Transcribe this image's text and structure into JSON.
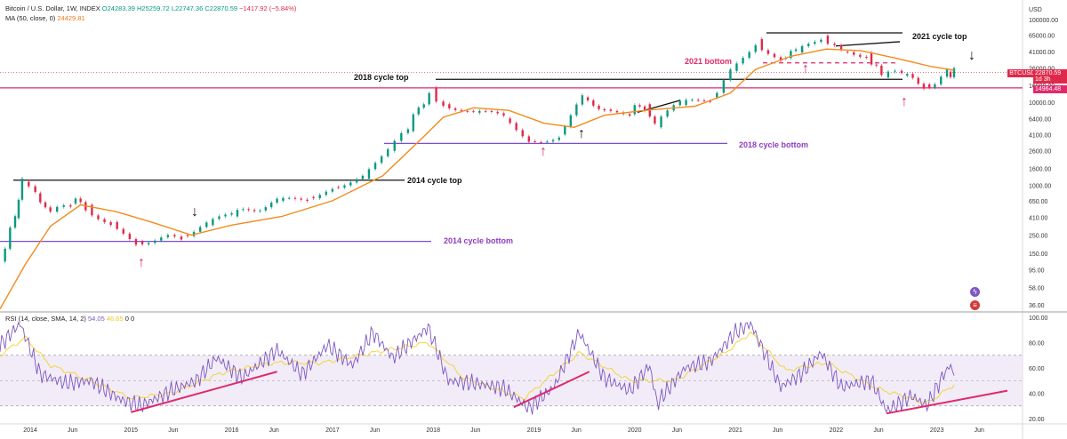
{
  "legend": {
    "main_title": "Bitcoin / U.S. Dollar, 1W, INDEX",
    "o": "O24283.39",
    "h": "H25259.72",
    "l": "L22747.36",
    "c": "C22870.59",
    "change": "−1417.92 (−5.84%)",
    "ma_label": "MA (50, close, 0)",
    "ma_value": "24429.81",
    "rsi_label": "RSI (14, close, SMA, 14, 2)",
    "rsi_value": "54.05",
    "rsi_sma_value": "46.65",
    "rsi_tail": "0  0"
  },
  "colors": {
    "up": "#089981",
    "down": "#e0294a",
    "ma": "#f28b1c",
    "rsi": "#7e57c2",
    "rsi_sma": "#f5d33a",
    "pink": "#e0296b",
    "purple": "#7c4dd3",
    "black": "#111111"
  },
  "chart_data": [
    {
      "type": "line",
      "title": "Bitcoin / U.S. Dollar, 1W, INDEX",
      "scale": "log",
      "currency": "USD",
      "ylim": [
        30,
        120000
      ],
      "y_ticks": [
        "USD",
        "100000.00",
        "65000.00",
        "41000.00",
        "26000.00",
        "16000.00",
        "10000.00",
        "6400.00",
        "4100.00",
        "2600.00",
        "1600.00",
        "1000.00",
        "650.00",
        "410.00",
        "250.00",
        "150.00",
        "95.00",
        "58.00",
        "36.00"
      ],
      "x_ticks": [
        "2014",
        "Jun",
        "2015",
        "Jun",
        "2016",
        "Jun",
        "2017",
        "Jun",
        "2018",
        "Jun",
        "2019",
        "Jun",
        "2020",
        "Jun",
        "2021",
        "Jun",
        "2022",
        "Jun",
        "2023",
        "Jun"
      ],
      "price_series": [
        {
          "t": 2013.7,
          "v": 120
        },
        {
          "t": 2013.85,
          "v": 400
        },
        {
          "t": 2013.92,
          "v": 1100
        },
        {
          "t": 2014.05,
          "v": 800
        },
        {
          "t": 2014.2,
          "v": 480
        },
        {
          "t": 2014.4,
          "v": 600
        },
        {
          "t": 2014.55,
          "v": 580
        },
        {
          "t": 2014.8,
          "v": 360
        },
        {
          "t": 2015.05,
          "v": 210
        },
        {
          "t": 2015.3,
          "v": 235
        },
        {
          "t": 2015.5,
          "v": 250
        },
        {
          "t": 2015.75,
          "v": 330
        },
        {
          "t": 2016.0,
          "v": 420
        },
        {
          "t": 2016.45,
          "v": 650
        },
        {
          "t": 2016.75,
          "v": 720
        },
        {
          "t": 2017.0,
          "v": 950
        },
        {
          "t": 2017.3,
          "v": 1200
        },
        {
          "t": 2017.55,
          "v": 2600
        },
        {
          "t": 2017.75,
          "v": 4500
        },
        {
          "t": 2017.96,
          "v": 15000
        },
        {
          "t": 2018.1,
          "v": 9500
        },
        {
          "t": 2018.4,
          "v": 7500
        },
        {
          "t": 2018.7,
          "v": 6400
        },
        {
          "t": 2018.95,
          "v": 3400
        },
        {
          "t": 2019.25,
          "v": 4100
        },
        {
          "t": 2019.48,
          "v": 11500
        },
        {
          "t": 2019.7,
          "v": 8200
        },
        {
          "t": 2019.95,
          "v": 7200
        },
        {
          "t": 2020.1,
          "v": 9500
        },
        {
          "t": 2020.2,
          "v": 5000
        },
        {
          "t": 2020.45,
          "v": 9300
        },
        {
          "t": 2020.75,
          "v": 11500
        },
        {
          "t": 2020.95,
          "v": 24000
        },
        {
          "t": 2021.2,
          "v": 58000
        },
        {
          "t": 2021.45,
          "v": 34000
        },
        {
          "t": 2021.6,
          "v": 40000
        },
        {
          "t": 2021.85,
          "v": 64000
        },
        {
          "t": 2022.05,
          "v": 41000
        },
        {
          "t": 2022.3,
          "v": 40000
        },
        {
          "t": 2022.45,
          "v": 20000
        },
        {
          "t": 2022.65,
          "v": 21000
        },
        {
          "t": 2022.87,
          "v": 16500
        },
        {
          "t": 2022.98,
          "v": 16500
        },
        {
          "t": 2023.1,
          "v": 23500
        },
        {
          "t": 2023.17,
          "v": 22870
        }
      ],
      "ma_series": [
        {
          "t": 2013.7,
          "v": 32
        },
        {
          "t": 2013.95,
          "v": 110
        },
        {
          "t": 2014.2,
          "v": 320
        },
        {
          "t": 2014.5,
          "v": 580
        },
        {
          "t": 2014.85,
          "v": 480
        },
        {
          "t": 2015.2,
          "v": 360
        },
        {
          "t": 2015.6,
          "v": 250
        },
        {
          "t": 2016.0,
          "v": 330
        },
        {
          "t": 2016.5,
          "v": 420
        },
        {
          "t": 2017.0,
          "v": 650
        },
        {
          "t": 2017.5,
          "v": 1300
        },
        {
          "t": 2017.9,
          "v": 3800
        },
        {
          "t": 2018.1,
          "v": 6600
        },
        {
          "t": 2018.4,
          "v": 8600
        },
        {
          "t": 2018.75,
          "v": 8000
        },
        {
          "t": 2019.1,
          "v": 5600
        },
        {
          "t": 2019.4,
          "v": 5000
        },
        {
          "t": 2019.7,
          "v": 7000
        },
        {
          "t": 2020.1,
          "v": 8000
        },
        {
          "t": 2020.6,
          "v": 9000
        },
        {
          "t": 2020.95,
          "v": 13000
        },
        {
          "t": 2021.2,
          "v": 25000
        },
        {
          "t": 2021.55,
          "v": 36000
        },
        {
          "t": 2021.9,
          "v": 44000
        },
        {
          "t": 2022.25,
          "v": 42000
        },
        {
          "t": 2022.6,
          "v": 34000
        },
        {
          "t": 2022.95,
          "v": 27000
        },
        {
          "t": 2023.17,
          "v": 24430
        }
      ],
      "price_labels": [
        {
          "name": "current-price",
          "value": "22870.59",
          "ticker": "BTCUSD",
          "countdown": "1d 3h"
        },
        {
          "name": "support-price",
          "value": "14964.48"
        }
      ],
      "annotations": [
        {
          "text": "2021 cycle top",
          "color": "black"
        },
        {
          "text": "2021 bottom",
          "color": "pink"
        },
        {
          "text": "2018 cycle top",
          "color": "black"
        },
        {
          "text": "2018 cycle bottom",
          "color": "purple"
        },
        {
          "text": "2014 cycle top",
          "color": "black"
        },
        {
          "text": "2014 cycle bottom",
          "color": "purple"
        }
      ],
      "levels": [
        {
          "name": "2014 cycle top",
          "value": 1150
        },
        {
          "name": "2014 cycle bottom",
          "value": 210
        },
        {
          "name": "2018 cycle top",
          "value": 19000
        },
        {
          "name": "2018 cycle bottom",
          "value": 3200
        },
        {
          "name": "2021 cycle top",
          "value": 69000
        },
        {
          "name": "2021 bottom",
          "value": 30000
        },
        {
          "name": "support",
          "value": 14964.48
        }
      ]
    },
    {
      "type": "line",
      "title": "RSI (14, close, SMA, 14, 2)",
      "ylim": [
        20,
        100
      ],
      "y_ticks": [
        "100.00",
        "80.00",
        "60.00",
        "40.00",
        "20.00"
      ],
      "band": [
        30,
        70
      ],
      "rsi_series": [
        {
          "t": 2013.7,
          "v": 78
        },
        {
          "t": 2013.9,
          "v": 95
        },
        {
          "t": 2014.1,
          "v": 55
        },
        {
          "t": 2014.35,
          "v": 48
        },
        {
          "t": 2014.6,
          "v": 50
        },
        {
          "t": 2014.9,
          "v": 35
        },
        {
          "t": 2015.1,
          "v": 30
        },
        {
          "t": 2015.4,
          "v": 42
        },
        {
          "t": 2015.65,
          "v": 50
        },
        {
          "t": 2015.85,
          "v": 68
        },
        {
          "t": 2016.1,
          "v": 52
        },
        {
          "t": 2016.45,
          "v": 74
        },
        {
          "t": 2016.7,
          "v": 55
        },
        {
          "t": 2016.95,
          "v": 78
        },
        {
          "t": 2017.2,
          "v": 62
        },
        {
          "t": 2017.4,
          "v": 88
        },
        {
          "t": 2017.6,
          "v": 68
        },
        {
          "t": 2017.95,
          "v": 92
        },
        {
          "t": 2018.15,
          "v": 50
        },
        {
          "t": 2018.4,
          "v": 48
        },
        {
          "t": 2018.7,
          "v": 44
        },
        {
          "t": 2018.95,
          "v": 28
        },
        {
          "t": 2019.2,
          "v": 45
        },
        {
          "t": 2019.45,
          "v": 88
        },
        {
          "t": 2019.7,
          "v": 52
        },
        {
          "t": 2019.95,
          "v": 42
        },
        {
          "t": 2020.15,
          "v": 62
        },
        {
          "t": 2020.22,
          "v": 32
        },
        {
          "t": 2020.5,
          "v": 60
        },
        {
          "t": 2020.75,
          "v": 65
        },
        {
          "t": 2021.0,
          "v": 88
        },
        {
          "t": 2021.15,
          "v": 95
        },
        {
          "t": 2021.45,
          "v": 45
        },
        {
          "t": 2021.65,
          "v": 55
        },
        {
          "t": 2021.85,
          "v": 72
        },
        {
          "t": 2022.05,
          "v": 45
        },
        {
          "t": 2022.35,
          "v": 50
        },
        {
          "t": 2022.5,
          "v": 26
        },
        {
          "t": 2022.75,
          "v": 38
        },
        {
          "t": 2022.9,
          "v": 30
        },
        {
          "t": 2023.05,
          "v": 52
        },
        {
          "t": 2023.12,
          "v": 62
        },
        {
          "t": 2023.17,
          "v": 54
        }
      ],
      "rsi_sma_series": [
        {
          "t": 2013.7,
          "v": 70
        },
        {
          "t": 2013.95,
          "v": 84
        },
        {
          "t": 2014.2,
          "v": 62
        },
        {
          "t": 2014.6,
          "v": 50
        },
        {
          "t": 2015.0,
          "v": 36
        },
        {
          "t": 2015.4,
          "v": 40
        },
        {
          "t": 2015.9,
          "v": 56
        },
        {
          "t": 2016.4,
          "v": 64
        },
        {
          "t": 2016.9,
          "v": 64
        },
        {
          "t": 2017.4,
          "v": 72
        },
        {
          "t": 2017.95,
          "v": 80
        },
        {
          "t": 2018.3,
          "v": 52
        },
        {
          "t": 2018.9,
          "v": 36
        },
        {
          "t": 2019.45,
          "v": 72
        },
        {
          "t": 2019.95,
          "v": 50
        },
        {
          "t": 2020.4,
          "v": 50
        },
        {
          "t": 2020.9,
          "v": 72
        },
        {
          "t": 2021.15,
          "v": 88
        },
        {
          "t": 2021.5,
          "v": 58
        },
        {
          "t": 2021.9,
          "v": 64
        },
        {
          "t": 2022.4,
          "v": 44
        },
        {
          "t": 2022.9,
          "v": 32
        },
        {
          "t": 2023.17,
          "v": 46.65
        }
      ],
      "trendlines": [
        {
          "from": {
            "t": 2015.0,
            "v": 25
          },
          "to": {
            "t": 2016.45,
            "v": 57
          }
        },
        {
          "from": {
            "t": 2018.8,
            "v": 29
          },
          "to": {
            "t": 2019.55,
            "v": 57
          }
        },
        {
          "from": {
            "t": 2022.5,
            "v": 24
          },
          "to": {
            "t": 2023.7,
            "v": 42
          }
        }
      ]
    }
  ]
}
